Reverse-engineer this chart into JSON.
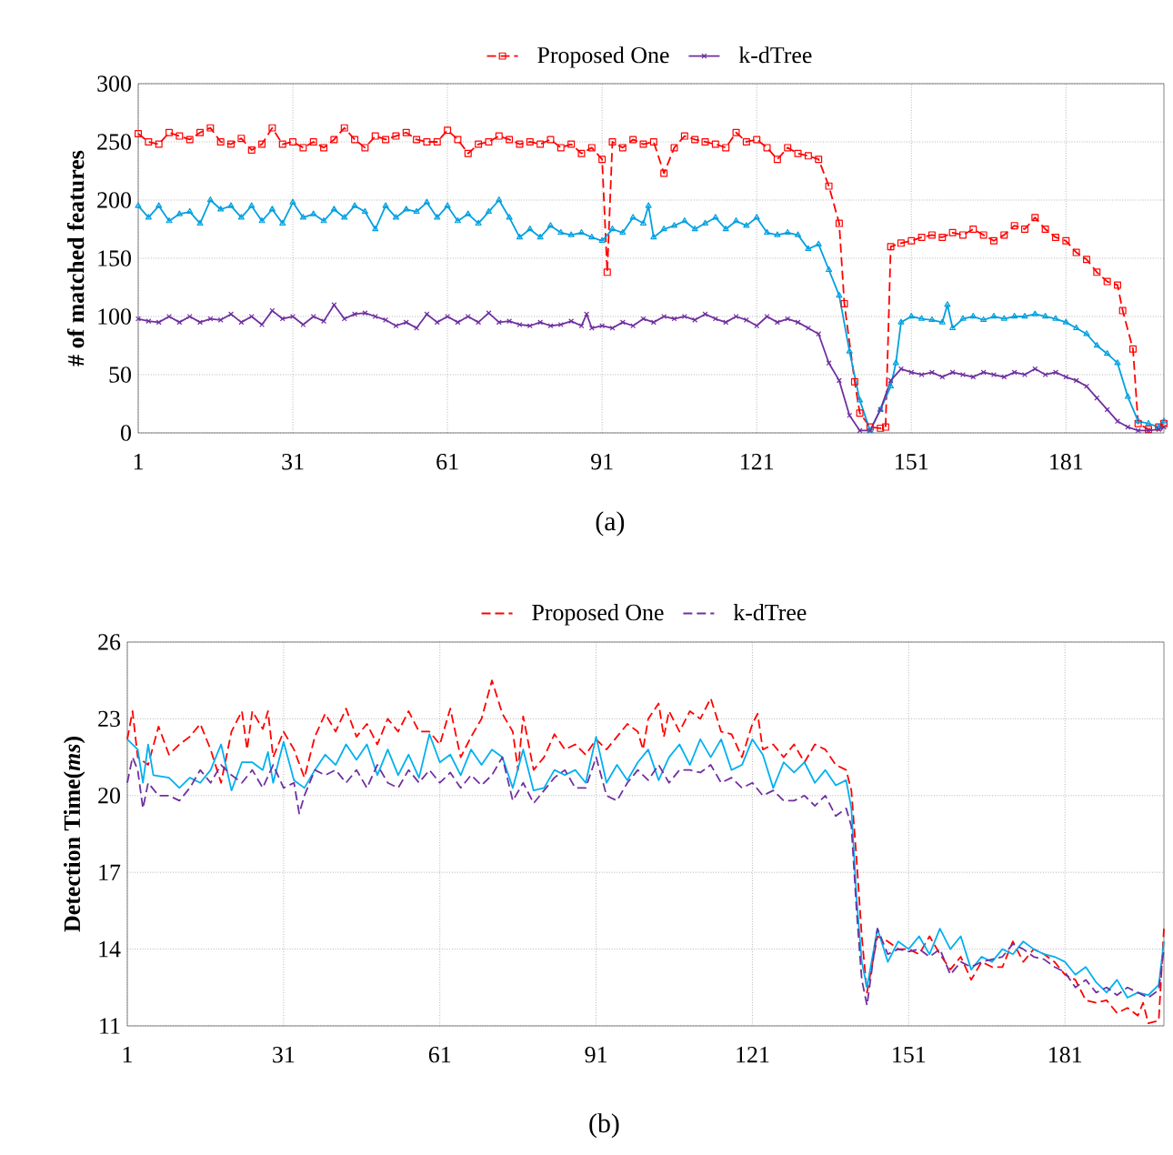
{
  "chart_data": [
    {
      "type": "line",
      "ylabel": "# of matched features",
      "xlim": [
        1,
        200
      ],
      "xticks": [
        1,
        31,
        61,
        91,
        121,
        151,
        181
      ],
      "ylim": [
        0,
        300
      ],
      "yticks": [
        0,
        50,
        100,
        150,
        200,
        250,
        300
      ],
      "grid": true,
      "legend": "top",
      "annotations": [
        "(a)"
      ],
      "series": [
        {
          "name": "Proposed One",
          "color": "#ff0000",
          "marker": "square",
          "line_style": "dashed",
          "x": [
            1,
            3,
            5,
            7,
            9,
            11,
            13,
            15,
            17,
            19,
            21,
            23,
            25,
            27,
            29,
            31,
            33,
            35,
            37,
            39,
            41,
            43,
            45,
            47,
            49,
            51,
            53,
            55,
            57,
            59,
            61,
            63,
            65,
            67,
            69,
            71,
            73,
            75,
            77,
            79,
            81,
            83,
            85,
            87,
            89,
            91,
            92,
            93,
            95,
            97,
            99,
            101,
            103,
            105,
            107,
            109,
            111,
            113,
            115,
            117,
            119,
            121,
            123,
            125,
            127,
            129,
            131,
            133,
            135,
            137,
            138,
            140,
            141,
            143,
            145,
            146,
            147,
            149,
            151,
            153,
            155,
            157,
            159,
            161,
            163,
            165,
            167,
            169,
            171,
            173,
            175,
            177,
            179,
            181,
            183,
            185,
            187,
            189,
            191,
            192,
            194,
            195,
            197,
            199,
            200
          ],
          "values": [
            257,
            250,
            248,
            258,
            255,
            252,
            258,
            262,
            250,
            248,
            253,
            243,
            248,
            262,
            248,
            250,
            245,
            250,
            245,
            252,
            262,
            252,
            245,
            255,
            252,
            255,
            258,
            252,
            250,
            250,
            260,
            252,
            240,
            248,
            250,
            255,
            252,
            248,
            250,
            248,
            252,
            245,
            248,
            240,
            245,
            235,
            138,
            250,
            245,
            252,
            248,
            250,
            223,
            245,
            255,
            252,
            250,
            248,
            245,
            258,
            250,
            252,
            245,
            235,
            245,
            240,
            238,
            235,
            212,
            180,
            111,
            44,
            17,
            5,
            4,
            5,
            160,
            163,
            165,
            168,
            170,
            168,
            172,
            170,
            175,
            170,
            165,
            170,
            178,
            175,
            185,
            175,
            168,
            165,
            155,
            149,
            138,
            130,
            127,
            105,
            72,
            8,
            3,
            5,
            8
          ]
        },
        {
          "color": "#00a0e0",
          "marker": "triangle",
          "line_style": "solid",
          "x": [
            1,
            3,
            5,
            7,
            9,
            11,
            13,
            15,
            17,
            19,
            21,
            23,
            25,
            27,
            29,
            31,
            33,
            35,
            37,
            39,
            41,
            43,
            45,
            47,
            49,
            51,
            53,
            55,
            57,
            59,
            61,
            63,
            65,
            67,
            69,
            71,
            73,
            75,
            77,
            79,
            81,
            83,
            85,
            87,
            89,
            91,
            93,
            95,
            97,
            99,
            100,
            101,
            103,
            105,
            107,
            109,
            111,
            113,
            115,
            117,
            119,
            121,
            123,
            125,
            127,
            129,
            131,
            133,
            135,
            137,
            139,
            141,
            143,
            145,
            147,
            148,
            149,
            151,
            153,
            155,
            157,
            158,
            159,
            161,
            163,
            165,
            167,
            169,
            171,
            173,
            175,
            177,
            179,
            181,
            183,
            185,
            187,
            189,
            191,
            193,
            195,
            197,
            199,
            200
          ],
          "values": [
            195,
            185,
            195,
            182,
            188,
            190,
            180,
            200,
            192,
            195,
            185,
            195,
            182,
            192,
            180,
            198,
            185,
            188,
            182,
            192,
            185,
            195,
            190,
            175,
            195,
            185,
            192,
            190,
            198,
            185,
            195,
            182,
            188,
            180,
            190,
            200,
            185,
            168,
            175,
            168,
            178,
            172,
            170,
            172,
            168,
            165,
            175,
            172,
            185,
            180,
            195,
            168,
            175,
            178,
            182,
            175,
            180,
            185,
            175,
            182,
            178,
            185,
            172,
            170,
            172,
            170,
            158,
            162,
            140,
            118,
            70,
            28,
            2,
            20,
            40,
            60,
            95,
            100,
            98,
            97,
            95,
            110,
            90,
            98,
            100,
            97,
            100,
            98,
            100,
            100,
            102,
            100,
            98,
            95,
            90,
            85,
            75,
            68,
            60,
            31,
            10,
            8,
            5,
            10
          ]
        },
        {
          "name": "k-dTree",
          "color": "#7030a0",
          "marker": "cross",
          "line_style": "solid",
          "x": [
            1,
            3,
            5,
            7,
            9,
            11,
            13,
            15,
            17,
            19,
            21,
            23,
            25,
            27,
            29,
            31,
            33,
            35,
            37,
            39,
            41,
            43,
            45,
            47,
            49,
            51,
            53,
            55,
            57,
            59,
            61,
            63,
            65,
            67,
            69,
            71,
            73,
            75,
            77,
            79,
            81,
            83,
            85,
            87,
            88,
            89,
            91,
            93,
            95,
            97,
            99,
            101,
            103,
            105,
            107,
            109,
            111,
            113,
            115,
            117,
            119,
            121,
            123,
            125,
            127,
            129,
            131,
            133,
            135,
            137,
            139,
            141,
            143,
            145,
            147,
            149,
            151,
            153,
            155,
            157,
            159,
            161,
            163,
            165,
            167,
            169,
            171,
            173,
            175,
            177,
            179,
            181,
            183,
            185,
            187,
            189,
            191,
            193,
            195,
            197,
            199,
            200
          ],
          "values": [
            98,
            96,
            95,
            100,
            95,
            100,
            95,
            98,
            97,
            102,
            95,
            100,
            93,
            105,
            98,
            100,
            93,
            100,
            96,
            110,
            98,
            102,
            103,
            100,
            97,
            92,
            95,
            90,
            102,
            95,
            100,
            95,
            100,
            95,
            103,
            95,
            96,
            93,
            92,
            95,
            92,
            93,
            96,
            92,
            102,
            90,
            92,
            90,
            95,
            92,
            98,
            95,
            100,
            98,
            100,
            97,
            102,
            98,
            95,
            100,
            97,
            92,
            100,
            95,
            98,
            95,
            90,
            85,
            60,
            45,
            15,
            2,
            2,
            20,
            45,
            55,
            52,
            50,
            52,
            48,
            52,
            50,
            48,
            52,
            50,
            48,
            52,
            50,
            55,
            50,
            52,
            48,
            45,
            40,
            30,
            20,
            10,
            5,
            2,
            2,
            3,
            5
          ]
        }
      ]
    },
    {
      "type": "line",
      "ylabel": "Detection Time(*ms*)",
      "xlim": [
        1,
        200
      ],
      "xticks": [
        1,
        31,
        61,
        91,
        121,
        151,
        181
      ],
      "ylim": [
        11,
        26
      ],
      "yticks": [
        11,
        14,
        17,
        20,
        23,
        26
      ],
      "grid": true,
      "legend": "top",
      "annotations": [
        "(b)"
      ],
      "series": [
        {
          "name": "Proposed One",
          "color": "#ff0000",
          "line_style": "dashed",
          "x": [
            1,
            2,
            3,
            5,
            7,
            9,
            11,
            13,
            15,
            17,
            19,
            21,
            23,
            24,
            25,
            27,
            28,
            29,
            31,
            33,
            35,
            37,
            39,
            41,
            43,
            45,
            47,
            49,
            51,
            53,
            55,
            57,
            59,
            61,
            63,
            65,
            67,
            69,
            71,
            73,
            75,
            76,
            77,
            79,
            81,
            83,
            85,
            87,
            89,
            91,
            93,
            95,
            97,
            99,
            100,
            101,
            103,
            104,
            105,
            107,
            109,
            111,
            113,
            115,
            117,
            119,
            121,
            122,
            123,
            125,
            127,
            129,
            131,
            133,
            135,
            137,
            139,
            140,
            141,
            142,
            143,
            145,
            147,
            149,
            151,
            153,
            155,
            157,
            159,
            161,
            163,
            165,
            167,
            169,
            171,
            173,
            175,
            177,
            179,
            181,
            183,
            185,
            187,
            189,
            191,
            193,
            195,
            196,
            197,
            199,
            200
          ],
          "values": [
            22.2,
            23.3,
            21.5,
            21.2,
            22.7,
            21.6,
            22.0,
            22.3,
            22.8,
            21.8,
            20.5,
            22.5,
            23.3,
            21.8,
            23.3,
            22.6,
            23.3,
            21.5,
            22.5,
            21.8,
            20.7,
            22.3,
            23.2,
            22.5,
            23.4,
            22.3,
            22.8,
            22.0,
            23.0,
            22.5,
            23.3,
            22.5,
            22.5,
            22.0,
            23.4,
            21.5,
            22.3,
            23.0,
            24.5,
            23.2,
            22.5,
            21.0,
            23.1,
            21.0,
            21.5,
            22.4,
            21.8,
            22.0,
            21.6,
            22.2,
            21.8,
            22.3,
            22.8,
            22.5,
            21.8,
            23.0,
            23.6,
            22.3,
            23.3,
            22.5,
            23.3,
            23.0,
            23.8,
            22.5,
            22.4,
            21.5,
            22.8,
            23.2,
            21.8,
            22.0,
            21.5,
            22.0,
            21.3,
            22.0,
            21.8,
            21.2,
            21.0,
            20.2,
            17.5,
            14.5,
            12.3,
            14.5,
            14.3,
            14.0,
            14.0,
            13.8,
            14.5,
            13.8,
            13.2,
            13.7,
            12.8,
            13.5,
            13.3,
            13.3,
            14.3,
            13.5,
            14.0,
            13.8,
            13.5,
            13.0,
            12.8,
            12.0,
            11.9,
            12.0,
            11.5,
            11.7,
            11.4,
            11.9,
            11.1,
            11.2,
            14.8
          ]
        },
        {
          "color": "#00b0f0",
          "line_style": "solid",
          "x": [
            1,
            3,
            4,
            5,
            6,
            9,
            11,
            13,
            15,
            17,
            19,
            21,
            23,
            25,
            27,
            28,
            29,
            31,
            33,
            35,
            37,
            39,
            41,
            43,
            45,
            47,
            49,
            51,
            53,
            55,
            57,
            59,
            61,
            63,
            65,
            67,
            69,
            71,
            73,
            75,
            77,
            79,
            81,
            83,
            85,
            87,
            89,
            91,
            93,
            95,
            97,
            99,
            101,
            103,
            105,
            107,
            109,
            111,
            113,
            115,
            117,
            119,
            121,
            123,
            125,
            127,
            129,
            131,
            133,
            135,
            137,
            139,
            140,
            141,
            142,
            143,
            145,
            147,
            149,
            151,
            153,
            155,
            157,
            159,
            161,
            163,
            165,
            167,
            169,
            171,
            173,
            175,
            177,
            179,
            181,
            183,
            185,
            187,
            189,
            191,
            193,
            195,
            197,
            199,
            200
          ],
          "values": [
            22.2,
            21.8,
            20.5,
            22.0,
            20.8,
            20.7,
            20.3,
            20.7,
            20.5,
            21.0,
            22.0,
            20.2,
            21.3,
            21.3,
            21.0,
            21.7,
            20.5,
            22.1,
            20.6,
            20.3,
            21.0,
            21.6,
            21.2,
            22.0,
            21.4,
            22.0,
            20.8,
            21.8,
            20.8,
            21.6,
            20.7,
            22.4,
            21.3,
            21.6,
            20.8,
            21.8,
            21.2,
            21.8,
            21.5,
            20.3,
            21.8,
            20.2,
            20.3,
            21.0,
            20.8,
            21.0,
            20.5,
            22.3,
            20.5,
            21.2,
            20.6,
            21.3,
            21.8,
            20.6,
            21.5,
            22.0,
            21.2,
            22.2,
            21.5,
            22.2,
            21.0,
            21.2,
            22.2,
            21.6,
            20.3,
            21.3,
            20.9,
            21.3,
            20.5,
            21.0,
            20.4,
            20.6,
            19.5,
            16.0,
            13.5,
            12.5,
            14.8,
            13.5,
            14.3,
            14.0,
            14.5,
            13.8,
            14.8,
            14.0,
            14.5,
            13.2,
            13.7,
            13.5,
            14.0,
            13.8,
            14.3,
            14.0,
            13.8,
            13.7,
            13.5,
            13.0,
            13.3,
            12.7,
            12.3,
            12.8,
            12.1,
            12.3,
            12.2,
            12.6,
            14.3
          ]
        },
        {
          "name": "k-dTree",
          "color": "#7030a0",
          "line_style": "dashed",
          "x": [
            1,
            2,
            3,
            4,
            5,
            7,
            9,
            11,
            13,
            15,
            17,
            19,
            21,
            23,
            25,
            27,
            29,
            31,
            33,
            34,
            35,
            37,
            39,
            41,
            43,
            45,
            47,
            49,
            51,
            53,
            55,
            57,
            59,
            61,
            63,
            65,
            67,
            69,
            71,
            73,
            75,
            77,
            79,
            81,
            83,
            85,
            87,
            89,
            91,
            93,
            95,
            97,
            99,
            101,
            103,
            105,
            107,
            109,
            111,
            113,
            115,
            117,
            119,
            121,
            123,
            125,
            127,
            129,
            131,
            133,
            135,
            137,
            139,
            140,
            141,
            142,
            143,
            145,
            147,
            149,
            151,
            153,
            155,
            157,
            159,
            161,
            163,
            165,
            167,
            169,
            171,
            173,
            175,
            177,
            179,
            181,
            183,
            185,
            187,
            189,
            191,
            193,
            195,
            197,
            199,
            200
          ],
          "values": [
            20.5,
            21.5,
            21.0,
            19.5,
            20.5,
            20.0,
            20.0,
            19.8,
            20.3,
            21.0,
            20.5,
            21.2,
            20.8,
            20.5,
            21.0,
            20.3,
            21.2,
            20.3,
            20.5,
            19.3,
            20.0,
            21.0,
            20.8,
            21.0,
            20.5,
            21.0,
            20.3,
            21.2,
            20.5,
            20.3,
            21.0,
            20.5,
            21.0,
            20.5,
            20.9,
            20.3,
            20.8,
            20.4,
            20.8,
            21.5,
            19.8,
            20.5,
            19.7,
            20.2,
            20.7,
            21.0,
            20.3,
            20.3,
            21.5,
            20.0,
            19.8,
            20.5,
            21.0,
            20.6,
            21.2,
            20.5,
            21.0,
            21.0,
            20.9,
            21.2,
            20.5,
            20.7,
            20.3,
            20.5,
            20.0,
            20.2,
            19.8,
            19.8,
            20.0,
            19.6,
            20.0,
            19.2,
            19.5,
            18.8,
            15.5,
            12.8,
            11.8,
            14.8,
            13.8,
            14.0,
            13.9,
            14.0,
            13.7,
            14.0,
            13.0,
            13.5,
            13.3,
            13.5,
            13.6,
            13.7,
            14.2,
            14.0,
            13.7,
            13.6,
            13.3,
            13.1,
            12.5,
            12.8,
            12.3,
            12.5,
            12.2,
            12.5,
            12.3,
            12.1,
            12.4,
            14.0
          ]
        }
      ]
    }
  ]
}
